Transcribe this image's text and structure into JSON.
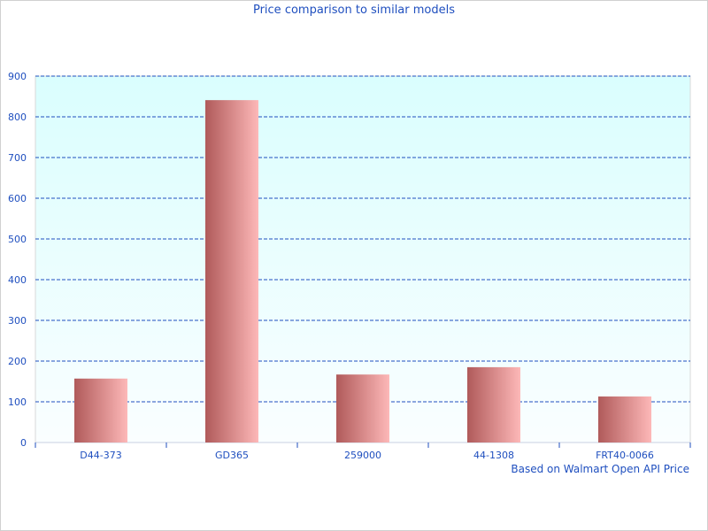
{
  "chart_data": {
    "type": "bar",
    "title": "Price comparison to similar models",
    "annotation": "Based on Walmart Open API Price",
    "categories": [
      "D44-373",
      "GD365",
      "259000",
      "44-1308",
      "FRT40-0066"
    ],
    "values": [
      157,
      841,
      167,
      185,
      113
    ],
    "ylim": [
      0,
      900
    ],
    "yticks": [
      0,
      100,
      200,
      300,
      400,
      500,
      600,
      700,
      800,
      900
    ],
    "grid": true,
    "legend": "none",
    "colors": {
      "bar_dark": "#b05a5a",
      "bar_light": "#fdb8b8",
      "plot_top": "#dafefe",
      "plot_bottom": "#fafeff",
      "text": "#1f4fbf",
      "grid": "#1f4fbf"
    }
  }
}
